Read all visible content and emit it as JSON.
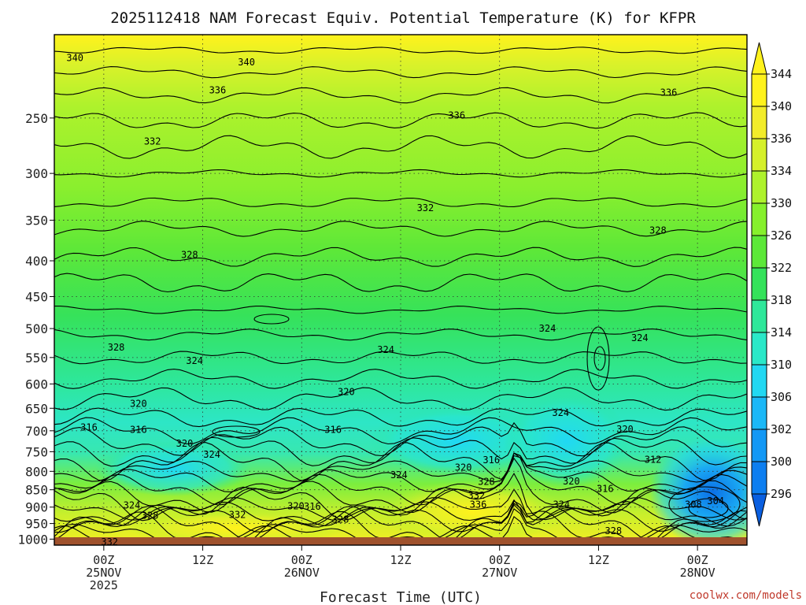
{
  "title": "2025112418 NAM Forecast Equiv. Potential Temperature (K) for KFPR",
  "credit": "coolwx.com/models",
  "chart_data": {
    "type": "heatmap",
    "title": "2025112418 NAM Forecast Equiv. Potential Temperature (K) for KFPR",
    "xlabel": "Forecast Time (UTC)",
    "ylabel": "",
    "x_range_hours_from_00Z25NOV": [
      -6,
      78
    ],
    "y_range_hPa": [
      1020,
      190
    ],
    "y_scale": "log-pressure",
    "grid": true,
    "y_ticks": [
      250,
      300,
      350,
      400,
      450,
      500,
      550,
      600,
      650,
      700,
      750,
      800,
      850,
      900,
      950,
      1000
    ],
    "x_ticks": [
      {
        "hour": 0,
        "lines": [
          "00Z",
          "25NOV",
          "2025"
        ]
      },
      {
        "hour": 12,
        "lines": [
          "12Z"
        ]
      },
      {
        "hour": 24,
        "lines": [
          "00Z",
          "26NOV"
        ]
      },
      {
        "hour": 36,
        "lines": [
          "12Z"
        ]
      },
      {
        "hour": 48,
        "lines": [
          "00Z",
          "27NOV"
        ]
      },
      {
        "hour": 60,
        "lines": [
          "12Z"
        ]
      },
      {
        "hour": 72,
        "lines": [
          "00Z",
          "28NOV"
        ]
      }
    ],
    "colorbar": {
      "levels": [
        296,
        300,
        302,
        306,
        310,
        314,
        318,
        322,
        326,
        330,
        334,
        336,
        340,
        344
      ],
      "colors": [
        "#0a5fe0",
        "#0d7ef0",
        "#1398f5",
        "#1bb8f7",
        "#22d8f2",
        "#2ae8c8",
        "#2ee79a",
        "#34e25a",
        "#5ce838",
        "#86f02c",
        "#aef22c",
        "#d5f02a",
        "#f2ec2a",
        "#fff21c"
      ],
      "extend": "both"
    },
    "contour_labels": [
      {
        "value": 340,
        "x_hour": -3.5,
        "p": 205
      },
      {
        "value": 340,
        "x_hour": 17.3,
        "p": 208
      },
      {
        "value": 336,
        "x_hour": 13.8,
        "p": 228
      },
      {
        "value": 336,
        "x_hour": 42.8,
        "p": 248
      },
      {
        "value": 336,
        "x_hour": 68.5,
        "p": 230
      },
      {
        "value": 332,
        "x_hour": 5.9,
        "p": 270
      },
      {
        "value": 332,
        "x_hour": 39,
        "p": 336
      },
      {
        "value": 328,
        "x_hour": 67.2,
        "p": 362
      },
      {
        "value": 328,
        "x_hour": 10.4,
        "p": 392
      },
      {
        "value": 328,
        "x_hour": 1.5,
        "p": 532
      },
      {
        "value": 324,
        "x_hour": 11,
        "p": 556
      },
      {
        "value": 324,
        "x_hour": 34.2,
        "p": 536
      },
      {
        "value": 324,
        "x_hour": 65,
        "p": 516
      },
      {
        "value": 324,
        "x_hour": 53.8,
        "p": 500
      },
      {
        "value": 320,
        "x_hour": 4.2,
        "p": 640
      },
      {
        "value": 320,
        "x_hour": 29.4,
        "p": 616
      },
      {
        "value": 316,
        "x_hour": -1.8,
        "p": 692
      },
      {
        "value": 316,
        "x_hour": 4.2,
        "p": 698
      },
      {
        "value": 316,
        "x_hour": 27.8,
        "p": 698
      },
      {
        "value": 320,
        "x_hour": 9.8,
        "p": 730
      },
      {
        "value": 324,
        "x_hour": 13.1,
        "p": 757
      },
      {
        "value": 324,
        "x_hour": 55.4,
        "p": 660
      },
      {
        "value": 320,
        "x_hour": 63.2,
        "p": 697
      },
      {
        "value": 312,
        "x_hour": 66.6,
        "p": 770
      },
      {
        "value": 316,
        "x_hour": 47,
        "p": 771
      },
      {
        "value": 320,
        "x_hour": 43.6,
        "p": 790
      },
      {
        "value": 324,
        "x_hour": 35.8,
        "p": 810
      },
      {
        "value": 328,
        "x_hour": 46.4,
        "p": 828
      },
      {
        "value": 320,
        "x_hour": 56.7,
        "p": 827
      },
      {
        "value": 316,
        "x_hour": 60.8,
        "p": 847
      },
      {
        "value": 332,
        "x_hour": 45.2,
        "p": 866
      },
      {
        "value": 336,
        "x_hour": 45.4,
        "p": 892
      },
      {
        "value": 324,
        "x_hour": 55.5,
        "p": 893
      },
      {
        "value": 324,
        "x_hour": 3.4,
        "p": 895
      },
      {
        "value": 328,
        "x_hour": 5.6,
        "p": 925
      },
      {
        "value": 332,
        "x_hour": 16.2,
        "p": 923
      },
      {
        "value": 320,
        "x_hour": 23.3,
        "p": 897
      },
      {
        "value": 316,
        "x_hour": 25.3,
        "p": 898
      },
      {
        "value": 328,
        "x_hour": 28.7,
        "p": 938
      },
      {
        "value": 308,
        "x_hour": 71.5,
        "p": 892
      },
      {
        "value": 304,
        "x_hour": 74.2,
        "p": 882
      },
      {
        "value": 328,
        "x_hour": 61.8,
        "p": 973
      },
      {
        "value": 332,
        "x_hour": 0.7,
        "p": 1010
      }
    ]
  }
}
